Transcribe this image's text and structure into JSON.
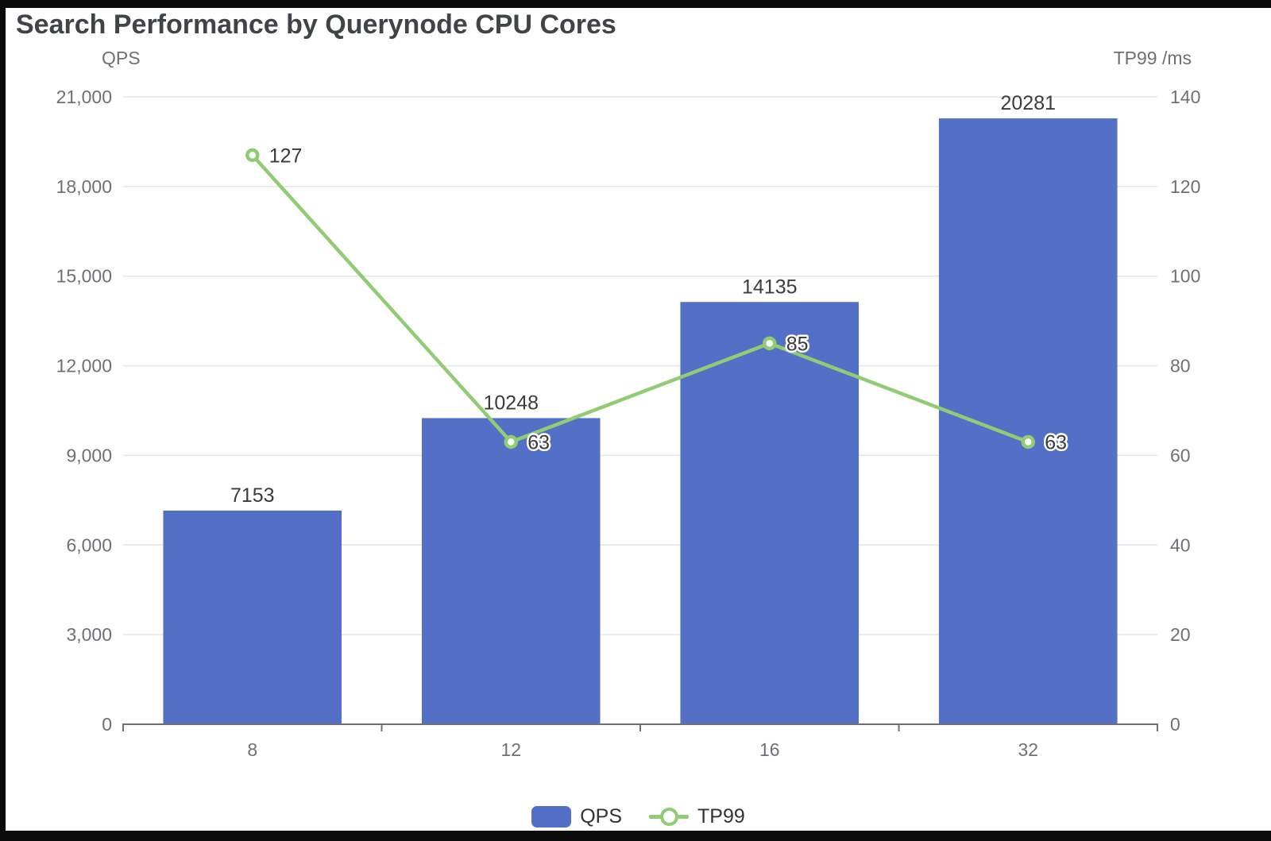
{
  "page": {
    "title": "Search Performance by Querynode CPU Cores"
  },
  "colors": {
    "bar": "#5470C6",
    "line": "#91CC75",
    "grid": "#E0E6F1",
    "axis": "#6E7079",
    "axis_text": "#6E7079",
    "title_text": "#404347",
    "value_text": "#3A3A3A",
    "frame": "#0b0b0b",
    "background": "#ffffff"
  },
  "legend": {
    "items": [
      {
        "label": "QPS",
        "type": "bar",
        "color": "#5470C6"
      },
      {
        "label": "TP99",
        "type": "line",
        "color": "#91CC75"
      }
    ]
  },
  "chart_data": {
    "type": "bar+line",
    "title": "Search Performance by Querynode CPU Cores",
    "categories": [
      "8",
      "12",
      "16",
      "32"
    ],
    "left_axis": {
      "name": "QPS",
      "min": 0,
      "max": 21000,
      "interval": 3000,
      "tick_labels": [
        "0",
        "3,000",
        "6,000",
        "9,000",
        "12,000",
        "15,000",
        "18,000",
        "21,000"
      ]
    },
    "right_axis": {
      "name": "TP99 /ms",
      "min": 0,
      "max": 140,
      "interval": 20,
      "tick_labels": [
        "0",
        "20",
        "40",
        "60",
        "80",
        "100",
        "120",
        "140"
      ]
    },
    "series": [
      {
        "name": "QPS",
        "type": "bar",
        "axis": "left",
        "color": "#5470C6",
        "values": [
          7153,
          10248,
          14135,
          20281
        ],
        "labels": [
          "7153",
          "10248",
          "14135",
          "20281"
        ]
      },
      {
        "name": "TP99",
        "type": "line",
        "axis": "right",
        "color": "#91CC75",
        "values": [
          127,
          63,
          85,
          63
        ],
        "labels": [
          "127",
          "63",
          "85",
          "63"
        ]
      }
    ],
    "grid": true,
    "legend_position": "bottom"
  }
}
